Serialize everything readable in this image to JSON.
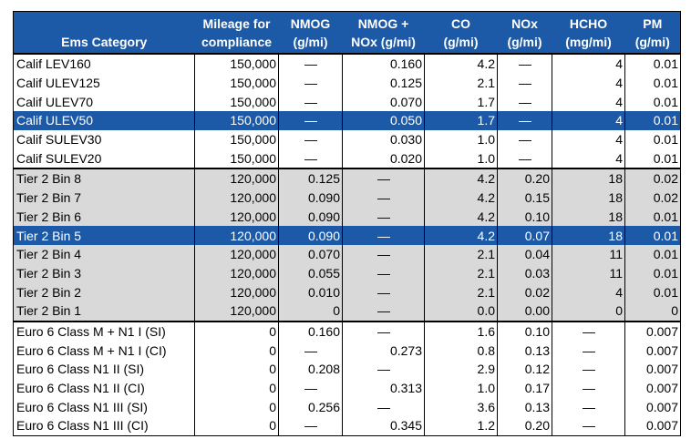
{
  "table": {
    "header": [
      [
        "Ems Category"
      ],
      [
        "Mileage for",
        "compliance"
      ],
      [
        "NMOG",
        "(g/mi)"
      ],
      [
        "NMOG +",
        "NOx (g/mi)"
      ],
      [
        "CO",
        "(g/mi)"
      ],
      [
        "NOx",
        "(g/mi)"
      ],
      [
        "HCHO",
        "(mg/mi)"
      ],
      [
        "PM",
        "(g/mi)"
      ]
    ],
    "groups": [
      [
        [
          "Calif LEV160",
          "150,000",
          "—",
          "0.160",
          "4.2",
          "—",
          "4",
          "0.01"
        ],
        [
          "Calif ULEV125",
          "150,000",
          "—",
          "0.125",
          "2.1",
          "—",
          "4",
          "0.01"
        ],
        [
          "Calif ULEV70",
          "150,000",
          "—",
          "0.070",
          "1.7",
          "—",
          "4",
          "0.01"
        ],
        [
          "Calif ULEV50",
          "150,000",
          "—",
          "0.050",
          "1.7",
          "—",
          "4",
          "0.01"
        ],
        [
          "Calif SULEV30",
          "150,000",
          "—",
          "0.030",
          "1.0",
          "—",
          "4",
          "0.01"
        ],
        [
          "Calif SULEV20",
          "150,000",
          "—",
          "0.020",
          "1.0",
          "—",
          "4",
          "0.01"
        ]
      ],
      [
        [
          "Tier 2 Bin 8",
          "120,000",
          "0.125",
          "—",
          "4.2",
          "0.20",
          "18",
          "0.02"
        ],
        [
          "Tier 2 Bin 7",
          "120,000",
          "0.090",
          "—",
          "4.2",
          "0.15",
          "18",
          "0.02"
        ],
        [
          "Tier 2 Bin 6",
          "120,000",
          "0.090",
          "—",
          "4.2",
          "0.10",
          "18",
          "0.01"
        ],
        [
          "Tier 2 Bin 5",
          "120,000",
          "0.090",
          "—",
          "4.2",
          "0.07",
          "18",
          "0.01"
        ],
        [
          "Tier 2 Bin 4",
          "120,000",
          "0.070",
          "—",
          "2.1",
          "0.04",
          "11",
          "0.01"
        ],
        [
          "Tier 2 Bin 3",
          "120,000",
          "0.055",
          "—",
          "2.1",
          "0.03",
          "11",
          "0.01"
        ],
        [
          "Tier 2 Bin 2",
          "120,000",
          "0.010",
          "—",
          "2.1",
          "0.02",
          "4",
          "0.01"
        ],
        [
          "Tier 2 Bin 1",
          "120,000",
          "0",
          "—",
          "0.0",
          "0.00",
          "0",
          "0"
        ]
      ],
      [
        [
          "Euro 6 Class M + N1 I (SI)",
          "0",
          "0.160",
          "—",
          "1.6",
          "0.10",
          "—",
          "0.007"
        ],
        [
          "Euro 6 Class M + N1 I (CI)",
          "0",
          "—",
          "0.273",
          "0.8",
          "0.13",
          "—",
          "0.007"
        ],
        [
          "Euro 6 Class N1 II (SI)",
          "0",
          "0.208",
          "—",
          "2.9",
          "0.12",
          "—",
          "0.007"
        ],
        [
          "Euro 6 Class N1 II (CI)",
          "0",
          "—",
          "0.313",
          "1.0",
          "0.17",
          "—",
          "0.007"
        ],
        [
          "Euro 6 Class N1 III (SI)",
          "0",
          "0.256",
          "—",
          "3.6",
          "0.13",
          "—",
          "0.007"
        ],
        [
          "Euro 6 Class N1 III (CI)",
          "0",
          "—",
          "0.345",
          "1.2",
          "0.20",
          "—",
          "0.007"
        ]
      ]
    ]
  }
}
